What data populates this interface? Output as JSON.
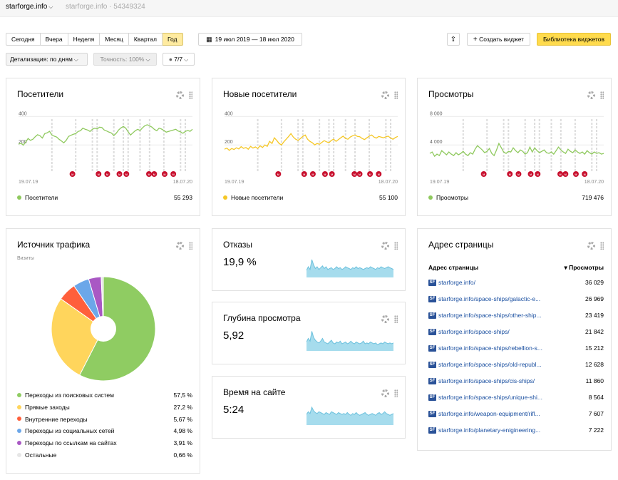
{
  "topbar": {
    "site": "starforge.info",
    "counter_info": "starforge.info · 54349324"
  },
  "periods": [
    "Сегодня",
    "Вчера",
    "Неделя",
    "Месяц",
    "Квартал",
    "Год"
  ],
  "active_period": "Год",
  "date_range": "19 июл 2019 — 18 июл 2020",
  "toolbar": {
    "create_widget": "Создать виджет",
    "widget_library": "Библиотека виджетов",
    "detail": "Детализация: по дням",
    "accuracy": "Точность: 100%",
    "segments": "7/7"
  },
  "colors": {
    "green": "#8fc95e",
    "yellow": "#f5c726",
    "blue": "#6cc1dd",
    "marker": "#c8102e",
    "link": "#1a4fa0"
  },
  "widgets": {
    "visitors": {
      "title": "Посетители",
      "legend": "Посетители",
      "total": "55 293",
      "chart_data": {
        "type": "line",
        "x_start": "19.07.19",
        "x_end": "18.07.20",
        "yticks": [
          "400",
          "200"
        ],
        "values": [
          205,
          212,
          198,
          220,
          245,
          232,
          240,
          258,
          272,
          265,
          248,
          280,
          285,
          296,
          270,
          262,
          255,
          240,
          228,
          215,
          232,
          260,
          268,
          275,
          280,
          295,
          300,
          318,
          310,
          305,
          295,
          310,
          318,
          312,
          325,
          322,
          305,
          298,
          290,
          284,
          266,
          282,
          305,
          320,
          330,
          318,
          292,
          270,
          285,
          300,
          310,
          302,
          320,
          335,
          342,
          335,
          325,
          310,
          300,
          318,
          312,
          302,
          290,
          295,
          300,
          305,
          310,
          298,
          292,
          282,
          295,
          302,
          296,
          310
        ]
      }
    },
    "new_visitors": {
      "title": "Новые посетители",
      "legend": "Новые посетители",
      "total": "55 100",
      "chart_data": {
        "type": "line",
        "x_start": "19.07.19",
        "x_end": "18.07.20",
        "yticks": [
          "400",
          "200"
        ],
        "values": [
          170,
          178,
          162,
          175,
          168,
          180,
          172,
          188,
          176,
          182,
          170,
          190,
          178,
          186,
          175,
          194,
          182,
          200,
          190,
          225,
          210,
          250,
          232,
          210,
          200,
          222,
          240,
          260,
          280,
          255,
          240,
          232,
          245,
          260,
          270,
          240,
          225,
          215,
          200,
          210,
          205,
          218,
          230,
          222,
          215,
          232,
          240,
          225,
          238,
          250,
          262,
          245,
          240,
          255,
          265,
          270,
          260,
          258,
          245,
          238,
          250,
          262,
          270,
          255,
          248,
          260,
          255,
          250,
          258,
          262,
          248,
          240,
          252,
          260
        ]
      }
    },
    "views": {
      "title": "Просмотры",
      "legend": "Просмотры",
      "total": "719 476",
      "chart_data": {
        "type": "line",
        "x_start": "19.07.19",
        "x_end": "18.07.20",
        "yticks": [
          "8 000",
          "4 000"
        ],
        "values": [
          2800,
          3000,
          2400,
          2700,
          2500,
          3200,
          2900,
          2600,
          3000,
          2700,
          2500,
          2900,
          2600,
          2800,
          3100,
          2700,
          2500,
          2900,
          2700,
          3400,
          3900,
          3600,
          3300,
          2900,
          3100,
          3500,
          2800,
          2500,
          3300,
          4200,
          3600,
          3000,
          2800,
          3100,
          3000,
          3600,
          3200,
          2900,
          3300,
          3100,
          2700,
          2900,
          3700,
          3000,
          3600,
          3200,
          2900,
          3100,
          3300,
          2900,
          2800,
          3000,
          2700,
          3200,
          3700,
          3300,
          3000,
          2800,
          3400,
          3100,
          2900,
          3300,
          3000,
          2800,
          3000,
          2700,
          3200,
          2900,
          2700,
          3000,
          2800,
          2900,
          2700,
          2800
        ]
      }
    },
    "traffic": {
      "title": "Источник трафика",
      "subtitle": "Визиты",
      "chart_data": {
        "type": "pie",
        "slices": [
          {
            "label": "Переходы из поисковых систем",
            "value": 57.5,
            "display": "57,5 %",
            "color": "#8fcc62"
          },
          {
            "label": "Прямые заходы",
            "value": 27.2,
            "display": "27,2 %",
            "color": "#ffd55c"
          },
          {
            "label": "Внутренние переходы",
            "value": 5.67,
            "display": "5,67 %",
            "color": "#ff5f3b"
          },
          {
            "label": "Переходы из социальных сетей",
            "value": 4.98,
            "display": "4,98 %",
            "color": "#6ca7e9"
          },
          {
            "label": "Переходы по ссылкам на сайтах",
            "value": 3.91,
            "display": "3,91 %",
            "color": "#a958c4"
          },
          {
            "label": "Остальные",
            "value": 0.66,
            "display": "0,66 %",
            "color": "#e6e6e6"
          }
        ]
      }
    },
    "bounces": {
      "title": "Отказы",
      "value": "19,9 %",
      "chart_data": {
        "type": "area",
        "values": [
          8,
          12,
          9,
          20,
          14,
          10,
          12,
          9,
          11,
          13,
          10,
          12,
          9,
          10,
          11,
          9,
          10,
          12,
          10,
          11,
          9,
          10,
          12,
          11,
          10,
          9,
          11,
          10,
          12,
          10,
          11,
          10,
          9,
          10,
          11,
          10,
          12,
          11,
          10,
          9,
          11,
          10,
          12,
          11,
          10,
          11,
          12,
          11,
          10,
          9
        ]
      }
    },
    "depth": {
      "title": "Глубина просмотра",
      "value": "5,92",
      "chart_data": {
        "type": "area",
        "values": [
          10,
          14,
          11,
          22,
          15,
          12,
          10,
          9,
          11,
          14,
          10,
          9,
          8,
          10,
          12,
          9,
          8,
          10,
          9,
          11,
          8,
          9,
          10,
          8,
          9,
          11,
          9,
          8,
          10,
          9,
          8,
          9,
          11,
          8,
          9,
          8,
          10,
          9,
          8,
          9,
          7,
          8,
          9,
          8,
          10,
          9,
          8,
          9,
          8,
          9
        ]
      }
    },
    "time": {
      "title": "Время на сайте",
      "value": "5:24",
      "chart_data": {
        "type": "area",
        "values": [
          12,
          15,
          13,
          20,
          16,
          14,
          13,
          15,
          14,
          13,
          12,
          14,
          13,
          12,
          15,
          14,
          13,
          12,
          14,
          13,
          12,
          13,
          12,
          14,
          12,
          11,
          13,
          12,
          14,
          12,
          11,
          12,
          13,
          14,
          12,
          11,
          12,
          13,
          12,
          11,
          13,
          14,
          12,
          13,
          15,
          13,
          12,
          11,
          12,
          13
        ]
      }
    },
    "pages": {
      "title": "Адрес страницы",
      "col_page": "Адрес страницы",
      "col_views": "▾ Просмотры",
      "rows": [
        {
          "url": "starforge.info/",
          "views": "36 029"
        },
        {
          "url": "starforge.info/space-ships/galactic-e...",
          "views": "26 969"
        },
        {
          "url": "starforge.info/space-ships/other-ship...",
          "views": "23 419"
        },
        {
          "url": "starforge.info/space-ships/",
          "views": "21 842"
        },
        {
          "url": "starforge.info/space-ships/rebellion-s...",
          "views": "15 212"
        },
        {
          "url": "starforge.info/space-ships/old-republ...",
          "views": "12 628"
        },
        {
          "url": "starforge.info/space-ships/cis-ships/",
          "views": "11 860"
        },
        {
          "url": "starforge.info/space-ships/unique-shi...",
          "views": "8 564"
        },
        {
          "url": "starforge.info/weapon-equipment/rifl...",
          "views": "7 607"
        },
        {
          "url": "starforge.info/planetary-enigineering...",
          "views": "7 222"
        }
      ]
    }
  }
}
